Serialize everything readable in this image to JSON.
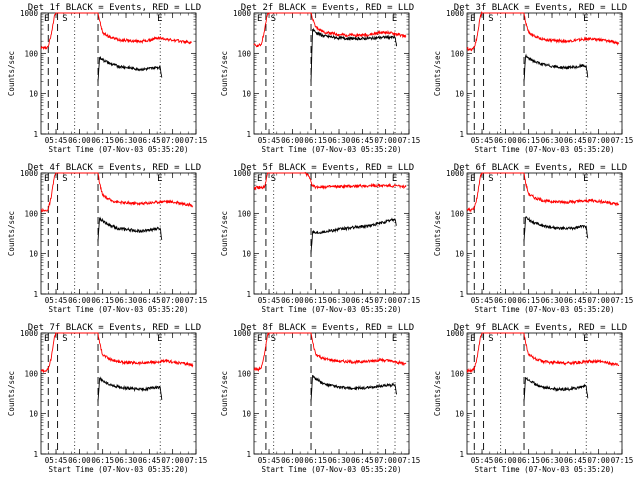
{
  "figure": {
    "xlabel": "Start Time (07-Nov-03 05:35:20)",
    "ylabel": "Counts/sec",
    "x_tick_labels": [
      "05:45",
      "06:00",
      "06:15",
      "06:30",
      "06:45",
      "07:00",
      "07:15"
    ],
    "y_tick_labels": [
      "1",
      "10",
      "100",
      "1000"
    ],
    "marker_labels": [
      "E",
      "S",
      "E"
    ],
    "colors": {
      "events": "#000000",
      "lld": "#ff0000",
      "background": "#ffffff"
    }
  },
  "chart_data": [
    {
      "type": "line",
      "title": "Det 1f BLACK = Events, RED = LLD",
      "xlim": [
        "05:35:20",
        "07:15:00"
      ],
      "ylim": [
        1,
        1000
      ],
      "yscale": "log",
      "grid": false,
      "legend": "none",
      "markers": {
        "dashed": [
          "05:40",
          "05:46",
          "06:12"
        ],
        "dotted": [
          "05:57",
          "06:52"
        ]
      },
      "series": [
        {
          "name": "RED = LLD",
          "color": "#ff0000",
          "x": [
            "05:35:20",
            "05:38",
            "05:40",
            "05:42",
            "05:44",
            "05:45",
            "06:12",
            "06:13",
            "06:15",
            "06:20",
            "06:25",
            "06:30",
            "06:35",
            "06:40",
            "06:45",
            "06:50",
            "06:55",
            "07:00",
            "07:05",
            "07:10",
            "07:12"
          ],
          "y": [
            140,
            135,
            150,
            300,
            900,
            1000,
            1000,
            650,
            320,
            250,
            220,
            210,
            200,
            200,
            210,
            240,
            230,
            210,
            200,
            190,
            180
          ]
        },
        {
          "name": "BLACK = Events",
          "color": "#000000",
          "x": [
            "06:12",
            "06:13",
            "06:15",
            "06:20",
            "06:25",
            "06:30",
            "06:35",
            "06:40",
            "06:45",
            "06:50",
            "06:52",
            "06:53"
          ],
          "y": [
            20,
            80,
            70,
            55,
            48,
            45,
            42,
            40,
            42,
            45,
            45,
            25
          ]
        }
      ]
    },
    {
      "type": "line",
      "title": "Det 2f BLACK = Events, RED = LLD",
      "xlim": [
        "05:35:20",
        "07:15:00"
      ],
      "ylim": [
        1,
        1000
      ],
      "yscale": "log",
      "grid": false,
      "legend": "none",
      "markers": {
        "dashed": [
          "05:43",
          "06:12"
        ],
        "dotted": [
          "05:48",
          "06:55",
          "07:06"
        ]
      },
      "series": [
        {
          "name": "RED = LLD",
          "color": "#ff0000",
          "x": [
            "05:35:20",
            "05:38",
            "05:40",
            "05:42",
            "05:44",
            "05:45",
            "06:12",
            "06:13",
            "06:15",
            "06:20",
            "06:30",
            "06:40",
            "06:50",
            "06:55",
            "07:00",
            "07:05",
            "07:10",
            "07:13"
          ],
          "y": [
            160,
            155,
            165,
            350,
            950,
            1000,
            1000,
            700,
            450,
            340,
            290,
            280,
            290,
            320,
            330,
            310,
            280,
            260
          ]
        },
        {
          "name": "BLACK = Events",
          "color": "#000000",
          "x": [
            "06:12",
            "06:13",
            "06:15",
            "06:20",
            "06:30",
            "06:40",
            "06:50",
            "06:55",
            "07:00",
            "07:05",
            "07:06",
            "07:07"
          ],
          "y": [
            20,
            400,
            330,
            270,
            240,
            230,
            235,
            245,
            250,
            250,
            250,
            150
          ]
        }
      ]
    },
    {
      "type": "line",
      "title": "Det 3f BLACK = Events, RED = LLD",
      "xlim": [
        "05:35:20",
        "07:15:00"
      ],
      "ylim": [
        1,
        1000
      ],
      "yscale": "log",
      "grid": false,
      "legend": "none",
      "markers": {
        "dashed": [
          "05:40",
          "05:46",
          "06:12"
        ],
        "dotted": [
          "05:57",
          "06:52"
        ]
      },
      "series": [
        {
          "name": "RED = LLD",
          "color": "#ff0000",
          "x": [
            "05:35:20",
            "05:38",
            "05:40",
            "05:42",
            "05:44",
            "05:45",
            "06:12",
            "06:13",
            "06:15",
            "06:20",
            "06:25",
            "06:30",
            "06:40",
            "06:50",
            "06:55",
            "07:00",
            "07:05",
            "07:10",
            "07:13"
          ],
          "y": [
            130,
            125,
            140,
            280,
            880,
            1000,
            1000,
            600,
            330,
            250,
            220,
            210,
            200,
            220,
            230,
            220,
            205,
            190,
            175
          ]
        },
        {
          "name": "BLACK = Events",
          "color": "#000000",
          "x": [
            "06:12",
            "06:13",
            "06:15",
            "06:20",
            "06:25",
            "06:30",
            "06:35",
            "06:40",
            "06:45",
            "06:50",
            "06:52",
            "06:53"
          ],
          "y": [
            20,
            85,
            75,
            60,
            52,
            48,
            45,
            44,
            45,
            50,
            48,
            25
          ]
        }
      ]
    },
    {
      "type": "line",
      "title": "Det 4f BLACK = Events, RED = LLD",
      "xlim": [
        "05:35:20",
        "07:15:00"
      ],
      "ylim": [
        1,
        1000
      ],
      "yscale": "log",
      "grid": false,
      "legend": "none",
      "markers": {
        "dashed": [
          "05:40",
          "05:46",
          "06:12"
        ],
        "dotted": [
          "05:57",
          "06:52"
        ]
      },
      "series": [
        {
          "name": "RED = LLD",
          "color": "#ff0000",
          "x": [
            "05:35:20",
            "05:38",
            "05:40",
            "05:42",
            "05:44",
            "05:45",
            "06:12",
            "06:13",
            "06:15",
            "06:20",
            "06:25",
            "06:30",
            "06:40",
            "06:50",
            "06:55",
            "07:00",
            "07:05",
            "07:10",
            "07:13"
          ],
          "y": [
            120,
            115,
            125,
            260,
            850,
            1000,
            1000,
            550,
            280,
            210,
            190,
            180,
            175,
            190,
            200,
            190,
            180,
            165,
            155
          ]
        },
        {
          "name": "BLACK = Events",
          "color": "#000000",
          "x": [
            "06:12",
            "06:13",
            "06:15",
            "06:20",
            "06:25",
            "06:30",
            "06:35",
            "06:40",
            "06:45",
            "06:50",
            "06:52",
            "06:53"
          ],
          "y": [
            20,
            75,
            65,
            50,
            42,
            40,
            38,
            36,
            38,
            42,
            42,
            22
          ]
        }
      ]
    },
    {
      "type": "line",
      "title": "Det 5f BLACK = Events, RED = LLD",
      "xlim": [
        "05:35:20",
        "07:15:00"
      ],
      "ylim": [
        1,
        1000
      ],
      "yscale": "log",
      "grid": false,
      "legend": "none",
      "markers": {
        "dashed": [
          "05:43",
          "06:12"
        ],
        "dotted": [
          "05:48",
          "06:55",
          "07:06"
        ]
      },
      "series": [
        {
          "name": "RED = LLD",
          "color": "#ff0000",
          "x": [
            "05:35:20",
            "05:40",
            "05:42",
            "05:43",
            "05:44",
            "06:08",
            "06:10",
            "06:12",
            "06:13",
            "06:15",
            "06:30",
            "06:45",
            "07:00",
            "07:10",
            "07:13"
          ],
          "y": [
            430,
            430,
            440,
            600,
            1000,
            1000,
            900,
            600,
            480,
            450,
            460,
            480,
            490,
            470,
            450
          ]
        },
        {
          "name": "BLACK = Events",
          "color": "#000000",
          "x": [
            "06:12",
            "06:13",
            "06:15",
            "06:20",
            "06:30",
            "06:40",
            "06:50",
            "06:55",
            "07:00",
            "07:05",
            "07:06",
            "07:07"
          ],
          "y": [
            10,
            35,
            33,
            35,
            40,
            45,
            50,
            55,
            62,
            70,
            70,
            50
          ]
        }
      ]
    },
    {
      "type": "line",
      "title": "Det 6f BLACK = Events, RED = LLD",
      "xlim": [
        "05:35:20",
        "07:15:00"
      ],
      "ylim": [
        1,
        1000
      ],
      "yscale": "log",
      "grid": false,
      "legend": "none",
      "markers": {
        "dashed": [
          "05:40",
          "05:46",
          "06:12"
        ],
        "dotted": [
          "05:57",
          "06:52"
        ]
      },
      "series": [
        {
          "name": "RED = LLD",
          "color": "#ff0000",
          "x": [
            "05:35:20",
            "05:38",
            "05:40",
            "05:42",
            "05:44",
            "05:45",
            "06:12",
            "06:13",
            "06:15",
            "06:20",
            "06:25",
            "06:30",
            "06:40",
            "06:50",
            "06:55",
            "07:00",
            "07:05",
            "07:10",
            "07:13"
          ],
          "y": [
            125,
            120,
            130,
            270,
            870,
            1000,
            1000,
            560,
            300,
            230,
            205,
            195,
            190,
            200,
            210,
            200,
            190,
            175,
            165
          ]
        },
        {
          "name": "BLACK = Events",
          "color": "#000000",
          "x": [
            "06:12",
            "06:13",
            "06:15",
            "06:20",
            "06:25",
            "06:30",
            "06:35",
            "06:40",
            "06:45",
            "06:50",
            "06:52",
            "06:53"
          ],
          "y": [
            20,
            80,
            70,
            55,
            48,
            45,
            42,
            42,
            43,
            48,
            47,
            24
          ]
        }
      ]
    },
    {
      "type": "line",
      "title": "Det 7f BLACK = Events, RED = LLD",
      "xlim": [
        "05:35:20",
        "07:15:00"
      ],
      "ylim": [
        1,
        1000
      ],
      "yscale": "log",
      "grid": false,
      "legend": "none",
      "markers": {
        "dashed": [
          "05:40",
          "05:46",
          "06:12"
        ],
        "dotted": [
          "05:57",
          "06:52"
        ]
      },
      "series": [
        {
          "name": "RED = LLD",
          "color": "#ff0000",
          "x": [
            "05:35:20",
            "05:38",
            "05:40",
            "05:42",
            "05:44",
            "05:45",
            "06:12",
            "06:13",
            "06:15",
            "06:20",
            "06:25",
            "06:30",
            "06:40",
            "06:50",
            "06:55",
            "07:00",
            "07:05",
            "07:10",
            "07:13"
          ],
          "y": [
            120,
            115,
            125,
            250,
            820,
            1000,
            1000,
            560,
            290,
            220,
            195,
            185,
            180,
            190,
            200,
            190,
            180,
            170,
            160
          ]
        },
        {
          "name": "BLACK = Events",
          "color": "#000000",
          "x": [
            "06:12",
            "06:13",
            "06:15",
            "06:20",
            "06:25",
            "06:30",
            "06:35",
            "06:40",
            "06:45",
            "06:50",
            "06:52",
            "06:53"
          ],
          "y": [
            20,
            75,
            65,
            52,
            46,
            43,
            41,
            40,
            42,
            45,
            45,
            22
          ]
        }
      ]
    },
    {
      "type": "line",
      "title": "Det 8f BLACK = Events, RED = LLD",
      "xlim": [
        "05:35:20",
        "07:15:00"
      ],
      "ylim": [
        1,
        1000
      ],
      "yscale": "log",
      "grid": false,
      "legend": "none",
      "markers": {
        "dashed": [
          "05:43",
          "06:12"
        ],
        "dotted": [
          "05:48",
          "06:55",
          "07:06"
        ]
      },
      "series": [
        {
          "name": "RED = LLD",
          "color": "#ff0000",
          "x": [
            "05:35:20",
            "05:38",
            "05:40",
            "05:42",
            "05:44",
            "05:45",
            "06:12",
            "06:13",
            "06:15",
            "06:20",
            "06:30",
            "06:40",
            "06:50",
            "06:55",
            "07:00",
            "07:05",
            "07:10",
            "07:13"
          ],
          "y": [
            130,
            125,
            135,
            280,
            880,
            1000,
            1000,
            600,
            300,
            230,
            200,
            190,
            200,
            215,
            210,
            195,
            180,
            170
          ]
        },
        {
          "name": "BLACK = Events",
          "color": "#000000",
          "x": [
            "06:12",
            "06:13",
            "06:15",
            "06:20",
            "06:30",
            "06:40",
            "06:50",
            "06:55",
            "07:00",
            "07:05",
            "07:06",
            "07:07"
          ],
          "y": [
            20,
            90,
            75,
            55,
            45,
            42,
            44,
            48,
            50,
            52,
            52,
            30
          ]
        }
      ]
    },
    {
      "type": "line",
      "title": "Det 9f BLACK = Events, RED = LLD",
      "xlim": [
        "05:35:20",
        "07:15:00"
      ],
      "ylim": [
        1,
        1000
      ],
      "yscale": "log",
      "grid": false,
      "legend": "none",
      "markers": {
        "dashed": [
          "05:40",
          "05:46",
          "06:12"
        ],
        "dotted": [
          "05:57",
          "06:52"
        ]
      },
      "series": [
        {
          "name": "RED = LLD",
          "color": "#ff0000",
          "x": [
            "05:35:20",
            "05:38",
            "05:40",
            "05:42",
            "05:44",
            "05:45",
            "06:12",
            "06:13",
            "06:15",
            "06:20",
            "06:25",
            "06:30",
            "06:40",
            "06:50",
            "06:55",
            "07:00",
            "07:05",
            "07:10",
            "07:13"
          ],
          "y": [
            120,
            115,
            125,
            255,
            830,
            1000,
            1000,
            570,
            290,
            220,
            195,
            185,
            180,
            190,
            200,
            195,
            185,
            170,
            160
          ]
        },
        {
          "name": "BLACK = Events",
          "color": "#000000",
          "x": [
            "06:12",
            "06:13",
            "06:15",
            "06:20",
            "06:25",
            "06:30",
            "06:35",
            "06:40",
            "06:45",
            "06:50",
            "06:52",
            "06:53"
          ],
          "y": [
            20,
            80,
            68,
            52,
            45,
            42,
            40,
            40,
            43,
            48,
            48,
            24
          ]
        }
      ]
    }
  ]
}
